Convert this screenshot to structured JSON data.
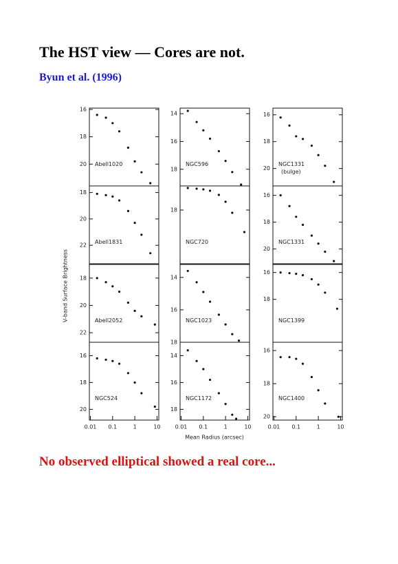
{
  "title": "The HST view — Cores are not.",
  "citation": "Byun et al. (1996)",
  "conclusion": "No observed elliptical showed a real core...",
  "figure": {
    "ylabel": "V-band Surface Brightness",
    "xlabel": "Mean Radius (arcsec)"
  },
  "chart_data": [
    {
      "type": "scatter",
      "label": "Abell1020",
      "log_x": true,
      "xlim": [
        0.009,
        12
      ],
      "ylim": [
        15.9,
        21.6
      ],
      "yticks": [
        16,
        18,
        20
      ],
      "x": [
        0.02,
        0.05,
        0.1,
        0.2,
        0.5,
        1,
        2,
        5
      ],
      "values": [
        16.4,
        16.6,
        17.0,
        17.6,
        18.8,
        19.8,
        20.6,
        21.4
      ]
    },
    {
      "type": "scatter",
      "label": "NGC596",
      "log_x": true,
      "xlim": [
        0.009,
        12
      ],
      "ylim": [
        13.6,
        19.2
      ],
      "yticks": [
        14,
        16,
        18
      ],
      "x": [
        0.02,
        0.05,
        0.1,
        0.2,
        0.5,
        1,
        2,
        5
      ],
      "values": [
        13.8,
        14.6,
        15.2,
        15.8,
        16.7,
        17.4,
        18.2,
        19.1
      ]
    },
    {
      "type": "scatter",
      "label": "NGC1331",
      "sublabel": "(bulge)",
      "log_x": true,
      "xlim": [
        0.009,
        12
      ],
      "ylim": [
        15.5,
        21.3
      ],
      "yticks": [
        16,
        18,
        20
      ],
      "x": [
        0.02,
        0.05,
        0.1,
        0.2,
        0.5,
        1,
        2,
        5
      ],
      "values": [
        16.2,
        16.8,
        17.6,
        17.8,
        18.3,
        19.0,
        19.8,
        21.0
      ]
    },
    {
      "type": "scatter",
      "label": "Abell1831",
      "log_x": true,
      "xlim": [
        0.009,
        12
      ],
      "ylim": [
        17.5,
        23.4
      ],
      "yticks": [
        18,
        20,
        22
      ],
      "x": [
        0.02,
        0.05,
        0.1,
        0.2,
        0.5,
        1,
        2,
        5
      ],
      "values": [
        18.1,
        18.2,
        18.3,
        18.6,
        19.4,
        20.3,
        21.2,
        22.6
      ]
    },
    {
      "type": "scatter",
      "label": "NGC720",
      "log_x": true,
      "xlim": [
        0.009,
        12
      ],
      "ylim": [
        16.25,
        21.9
      ],
      "yticks": [
        18
      ],
      "x": [
        0.02,
        0.05,
        0.1,
        0.2,
        0.5,
        1,
        2,
        7
      ],
      "values": [
        16.4,
        16.45,
        16.5,
        16.6,
        16.9,
        17.4,
        18.2,
        19.6
      ]
    },
    {
      "type": "scatter",
      "label": "NGC1331",
      "log_x": true,
      "xlim": [
        0.009,
        12
      ],
      "ylim": [
        15.3,
        21.1
      ],
      "yticks": [
        16,
        18,
        20
      ],
      "x": [
        0.02,
        0.05,
        0.1,
        0.2,
        0.5,
        1,
        2,
        5
      ],
      "values": [
        16.0,
        16.8,
        17.6,
        18.2,
        19.0,
        19.6,
        20.2,
        20.9
      ]
    },
    {
      "type": "scatter",
      "label": "Abell2052",
      "log_x": true,
      "xlim": [
        0.009,
        12
      ],
      "ylim": [
        17.0,
        22.7
      ],
      "yticks": [
        18,
        20,
        22
      ],
      "x": [
        0.02,
        0.05,
        0.1,
        0.2,
        0.5,
        1,
        2,
        8
      ],
      "values": [
        18.0,
        18.3,
        18.6,
        19.0,
        19.8,
        20.4,
        20.8,
        21.4
      ]
    },
    {
      "type": "scatter",
      "label": "NGC1023",
      "log_x": true,
      "xlim": [
        0.009,
        12
      ],
      "ylim": [
        13.2,
        18.0
      ],
      "yticks": [
        14,
        16,
        18
      ],
      "x": [
        0.02,
        0.05,
        0.1,
        0.2,
        0.5,
        1,
        2,
        4
      ],
      "values": [
        13.6,
        14.3,
        14.9,
        15.5,
        16.3,
        16.9,
        17.5,
        17.9
      ]
    },
    {
      "type": "scatter",
      "label": "NGC1399",
      "log_x": true,
      "xlim": [
        0.009,
        12
      ],
      "ylim": [
        15.4,
        21.2
      ],
      "yticks": [
        16,
        18
      ],
      "x": [
        0.02,
        0.05,
        0.1,
        0.2,
        0.5,
        1,
        2,
        7
      ],
      "values": [
        16.0,
        16.05,
        16.1,
        16.2,
        16.5,
        16.9,
        17.5,
        18.7
      ]
    },
    {
      "type": "scatter",
      "label": "NGC524",
      "log_x": true,
      "xlim": [
        0.009,
        12
      ],
      "ylim": [
        15.0,
        20.8
      ],
      "yticks": [
        16,
        18,
        20
      ],
      "xticks": [
        0.01,
        0.1,
        1,
        10
      ],
      "x": [
        0.02,
        0.05,
        0.1,
        0.2,
        0.5,
        1,
        2,
        8
      ],
      "values": [
        16.2,
        16.3,
        16.4,
        16.6,
        17.3,
        18.0,
        18.8,
        19.8
      ]
    },
    {
      "type": "scatter",
      "label": "NGC1172",
      "log_x": true,
      "xlim": [
        0.009,
        12
      ],
      "ylim": [
        13.0,
        18.8
      ],
      "yticks": [
        14,
        16,
        18
      ],
      "xticks": [
        0.01,
        0.1,
        1,
        10
      ],
      "x": [
        0.02,
        0.05,
        0.1,
        0.2,
        0.5,
        1,
        2,
        3
      ],
      "values": [
        13.6,
        14.4,
        15.0,
        15.8,
        16.8,
        17.6,
        18.4,
        18.7
      ]
    },
    {
      "type": "scatter",
      "label": "NGC1400",
      "log_x": true,
      "xlim": [
        0.009,
        12
      ],
      "ylim": [
        15.5,
        20.2
      ],
      "yticks": [
        16,
        18,
        20
      ],
      "xticks": [
        0.01,
        0.1,
        1,
        10
      ],
      "x": [
        0.02,
        0.05,
        0.1,
        0.2,
        0.5,
        1,
        2,
        8
      ],
      "values": [
        16.4,
        16.4,
        16.5,
        16.8,
        17.6,
        18.4,
        19.2,
        20.0
      ]
    }
  ]
}
